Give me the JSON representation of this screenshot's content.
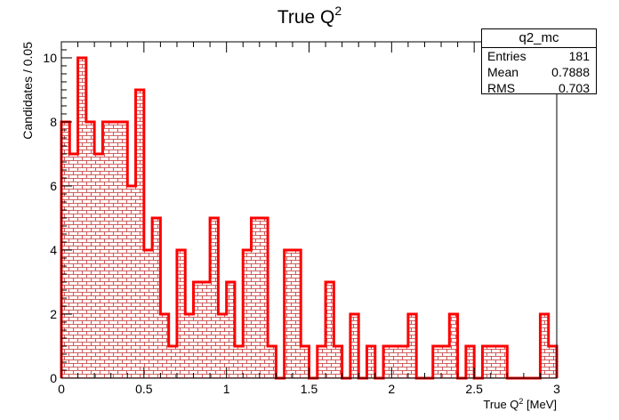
{
  "chart_data": {
    "type": "bar",
    "style": "histogram",
    "title": "True Q",
    "title_superscript": "2",
    "xlabel": "True Q",
    "xlabel_superscript": "2",
    "xlabel_unit": " [MeV]",
    "ylabel": "Candidates / 0.05",
    "xlim": [
      0,
      3
    ],
    "ylim": [
      0,
      10.5
    ],
    "bin_width": 0.05,
    "xticks": [
      0,
      0.5,
      1,
      1.5,
      2,
      2.5,
      3
    ],
    "xtick_labels": [
      "0",
      "0.5",
      "1",
      "1.5",
      "2",
      "2.5",
      "3"
    ],
    "yticks": [
      0,
      2,
      4,
      6,
      8,
      10
    ],
    "ytick_labels": [
      "0",
      "2",
      "4",
      "6",
      "8",
      "10"
    ],
    "line_color": "#ff0000",
    "fill_pattern": "brick",
    "fill_color": "#cc0000",
    "values": [
      8,
      7,
      10,
      8,
      7,
      8,
      8,
      8,
      6,
      9,
      4,
      5,
      2,
      1,
      4,
      2,
      3,
      3,
      5,
      2,
      3,
      1,
      4,
      5,
      5,
      1,
      0,
      4,
      4,
      1,
      0,
      1,
      3,
      1,
      0,
      2,
      0,
      1,
      0,
      1,
      1,
      1,
      2,
      0,
      0,
      1,
      1,
      2,
      0,
      1,
      0,
      1,
      1,
      1,
      0,
      0,
      0,
      0,
      2,
      1
    ]
  },
  "stats": {
    "name": "q2_mc",
    "rows": [
      {
        "label": "Entries",
        "value": "181"
      },
      {
        "label": "Mean",
        "value": "0.7888"
      },
      {
        "label": "RMS",
        "value": "0.703"
      }
    ]
  }
}
